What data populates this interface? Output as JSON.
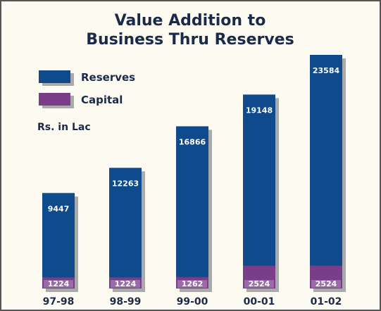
{
  "chart_data": {
    "type": "stacked_bar",
    "title": "Value Addition to Business Thru Reserves",
    "unit_label": "Rs. in Lac",
    "categories": [
      "97-98",
      "98-99",
      "99-00",
      "00-01",
      "01-02"
    ],
    "series": [
      {
        "name": "Capital",
        "color": "#7a3d8a",
        "values": [
          1224,
          1224,
          1262,
          2524,
          2524
        ]
      },
      {
        "name": "Reserves",
        "color": "#0e4a8c",
        "values": [
          9447,
          12263,
          16866,
          19148,
          23584
        ]
      }
    ]
  }
}
